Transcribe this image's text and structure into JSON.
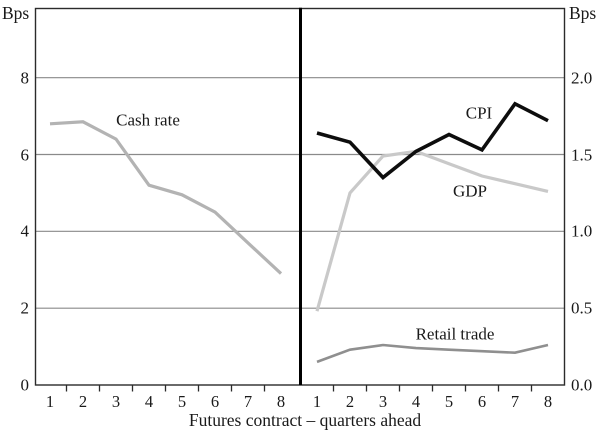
{
  "chart_data": {
    "type": "line",
    "xlabel": "Futures contract – quarters ahead",
    "x": [
      1,
      2,
      3,
      4,
      5,
      6,
      7,
      8
    ],
    "legend_position": "inline-annotations",
    "grid": "horizontal",
    "colors": {
      "frame": "#2b2b2b",
      "gridline": "#8a8a8a",
      "divider": "#000000",
      "background": "#ffffff",
      "text": "#1a1a1a"
    },
    "panels": [
      {
        "side": "left",
        "unit_label": "Bps",
        "ymax": 9.8,
        "y_ticks": [
          0,
          2,
          4,
          6,
          8
        ],
        "y_tick_labels": [
          "8",
          "6",
          "4",
          "2",
          "0"
        ],
        "series": [
          {
            "name": "Cash rate",
            "color": "#b3b3b3",
            "width": 3.2,
            "values": [
              6.8,
              6.85,
              6.4,
              5.2,
              4.95,
              4.5,
              3.7,
              2.9
            ]
          }
        ]
      },
      {
        "side": "right",
        "unit_label": "Bps",
        "ymax": 2.45,
        "y_ticks": [
          0,
          0.5,
          1.0,
          1.5,
          2.0
        ],
        "y_tick_labels": [
          "2.0",
          "1.5",
          "1.0",
          "0.5",
          "0.0"
        ],
        "series": [
          {
            "name": "CPI",
            "color": "#0d0d0d",
            "width": 3.6,
            "values": [
              1.64,
              1.58,
              1.35,
              1.52,
              1.63,
              1.53,
              1.83,
              1.72
            ]
          },
          {
            "name": "GDP",
            "color": "#c9c9c9",
            "width": 3.2,
            "values": [
              0.48,
              1.25,
              1.49,
              1.52,
              1.44,
              1.36,
              1.31,
              1.26
            ]
          },
          {
            "name": "Retail trade",
            "color": "#8f8f8f",
            "width": 2.6,
            "values": [
              0.15,
              0.23,
              0.26,
              0.24,
              0.23,
              0.22,
              0.21,
              0.26
            ]
          }
        ]
      }
    ]
  }
}
